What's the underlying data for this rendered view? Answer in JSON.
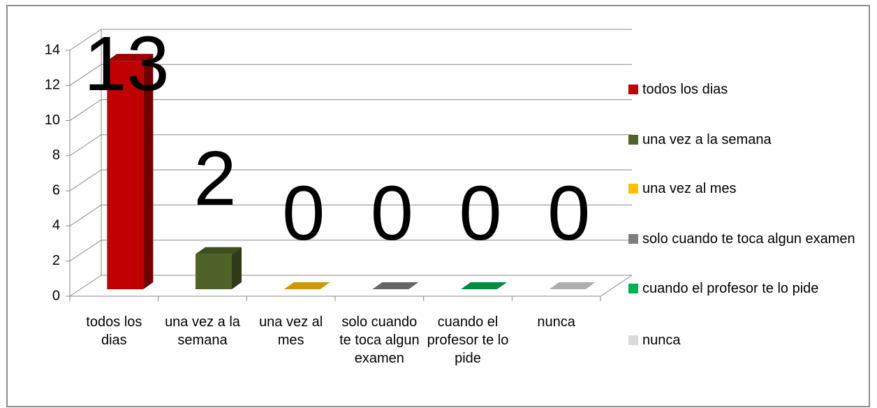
{
  "chart_data": {
    "type": "bar3d",
    "categories": [
      "todos los dias",
      "una vez a la semana",
      "una vez al mes",
      "solo cuando te toca algun examen",
      "cuando el profesor te lo pide",
      "nunca"
    ],
    "values": [
      13,
      2,
      0,
      0,
      0,
      0
    ],
    "colors": [
      "#c00000",
      "#4f6228",
      "#ffc000",
      "#7f7f7f",
      "#00b050",
      "#d9d9d9"
    ],
    "ylim": [
      0,
      14
    ],
    "yticks": [
      0,
      2,
      4,
      6,
      8,
      10,
      12,
      14
    ],
    "grid": true,
    "legend": "right"
  }
}
